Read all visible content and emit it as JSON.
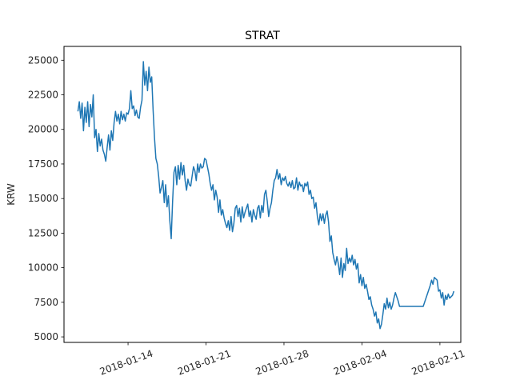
{
  "chart_data": {
    "type": "line",
    "title": "STRAT",
    "xlabel": "",
    "ylabel": "KRW",
    "y_ticks": [
      5000,
      7500,
      10000,
      12500,
      15000,
      17500,
      20000,
      22500,
      25000
    ],
    "y_tick_labels": [
      "5000",
      "7500",
      "10000",
      "12500",
      "15000",
      "17500",
      "20000",
      "22500",
      "25000"
    ],
    "x_ticks": [
      "2018-01-14",
      "2018-01-21",
      "2018-01-28",
      "2018-02-04",
      "2018-02-11"
    ],
    "x_tick_labels": [
      "2018-01-14",
      "2018-01-21",
      "2018-01-28",
      "2018-02-04",
      "2018-02-11"
    ],
    "xlim": [
      "2018-01-08T06:00",
      "2018-02-12T21:00"
    ],
    "ylim": [
      4600,
      26000
    ],
    "grid": false,
    "series": [
      {
        "color": "#1f77b4",
        "x": [
          "2018-01-09T12:00",
          "2018-01-09T15:00",
          "2018-01-09T18:00",
          "2018-01-09T21:00",
          "2018-01-10T00:00",
          "2018-01-10T03:00",
          "2018-01-10T06:00",
          "2018-01-10T09:00",
          "2018-01-10T12:00",
          "2018-01-10T15:00",
          "2018-01-10T18:00",
          "2018-01-10T21:00",
          "2018-01-11T00:00",
          "2018-01-11T03:00",
          "2018-01-11T06:00",
          "2018-01-11T09:00",
          "2018-01-11T12:00",
          "2018-01-11T15:00",
          "2018-01-11T18:00",
          "2018-01-11T21:00",
          "2018-01-12T00:00",
          "2018-01-12T03:00",
          "2018-01-12T06:00",
          "2018-01-12T09:00",
          "2018-01-12T12:00",
          "2018-01-12T15:00",
          "2018-01-12T18:00",
          "2018-01-12T21:00",
          "2018-01-13T00:00",
          "2018-01-13T03:00",
          "2018-01-13T06:00",
          "2018-01-13T09:00",
          "2018-01-13T12:00",
          "2018-01-13T15:00",
          "2018-01-13T18:00",
          "2018-01-13T21:00",
          "2018-01-14T00:00",
          "2018-01-14T03:00",
          "2018-01-14T06:00",
          "2018-01-14T09:00",
          "2018-01-14T12:00",
          "2018-01-14T15:00",
          "2018-01-14T18:00",
          "2018-01-14T21:00",
          "2018-01-15T00:00",
          "2018-01-15T03:00",
          "2018-01-15T06:00",
          "2018-01-15T09:00",
          "2018-01-15T12:00",
          "2018-01-15T15:00",
          "2018-01-15T18:00",
          "2018-01-15T21:00",
          "2018-01-16T00:00",
          "2018-01-16T03:00",
          "2018-01-16T06:00",
          "2018-01-16T09:00",
          "2018-01-16T12:00",
          "2018-01-16T15:00",
          "2018-01-16T18:00",
          "2018-01-16T21:00",
          "2018-01-17T00:00",
          "2018-01-17T03:00",
          "2018-01-17T06:00",
          "2018-01-17T09:00",
          "2018-01-17T12:00",
          "2018-01-17T15:00",
          "2018-01-17T18:00",
          "2018-01-17T21:00",
          "2018-01-18T00:00",
          "2018-01-18T03:00",
          "2018-01-18T06:00",
          "2018-01-18T09:00",
          "2018-01-18T12:00",
          "2018-01-18T15:00",
          "2018-01-18T18:00",
          "2018-01-18T21:00",
          "2018-01-19T00:00",
          "2018-01-19T03:00",
          "2018-01-19T06:00",
          "2018-01-19T09:00",
          "2018-01-19T12:00",
          "2018-01-19T15:00",
          "2018-01-19T18:00",
          "2018-01-19T21:00",
          "2018-01-20T00:00",
          "2018-01-20T03:00",
          "2018-01-20T06:00",
          "2018-01-20T09:00",
          "2018-01-20T12:00",
          "2018-01-20T15:00",
          "2018-01-20T18:00",
          "2018-01-20T21:00",
          "2018-01-21T00:00",
          "2018-01-21T03:00",
          "2018-01-21T06:00",
          "2018-01-21T09:00",
          "2018-01-21T12:00",
          "2018-01-21T15:00",
          "2018-01-21T18:00",
          "2018-01-21T21:00",
          "2018-01-22T00:00",
          "2018-01-22T03:00",
          "2018-01-22T06:00",
          "2018-01-22T09:00",
          "2018-01-22T12:00",
          "2018-01-22T15:00",
          "2018-01-22T18:00",
          "2018-01-22T21:00",
          "2018-01-23T00:00",
          "2018-01-23T03:00",
          "2018-01-23T06:00",
          "2018-01-23T09:00",
          "2018-01-23T12:00",
          "2018-01-23T15:00",
          "2018-01-23T18:00",
          "2018-01-23T21:00",
          "2018-01-24T00:00",
          "2018-01-24T03:00",
          "2018-01-24T06:00",
          "2018-01-24T09:00",
          "2018-01-24T12:00",
          "2018-01-24T15:00",
          "2018-01-24T18:00",
          "2018-01-24T21:00",
          "2018-01-25T00:00",
          "2018-01-25T03:00",
          "2018-01-25T06:00",
          "2018-01-25T09:00",
          "2018-01-25T12:00",
          "2018-01-25T15:00",
          "2018-01-25T18:00",
          "2018-01-25T21:00",
          "2018-01-26T00:00",
          "2018-01-26T03:00",
          "2018-01-26T06:00",
          "2018-01-26T09:00",
          "2018-01-26T12:00",
          "2018-01-26T15:00",
          "2018-01-26T18:00",
          "2018-01-26T21:00",
          "2018-01-27T00:00",
          "2018-01-27T03:00",
          "2018-01-27T06:00",
          "2018-01-27T09:00",
          "2018-01-27T12:00",
          "2018-01-27T15:00",
          "2018-01-27T18:00",
          "2018-01-27T21:00",
          "2018-01-28T00:00",
          "2018-01-28T03:00",
          "2018-01-28T06:00",
          "2018-01-28T09:00",
          "2018-01-28T12:00",
          "2018-01-28T15:00",
          "2018-01-28T18:00",
          "2018-01-28T21:00",
          "2018-01-29T00:00",
          "2018-01-29T03:00",
          "2018-01-29T06:00",
          "2018-01-29T09:00",
          "2018-01-29T12:00",
          "2018-01-29T15:00",
          "2018-01-29T18:00",
          "2018-01-29T21:00",
          "2018-01-30T00:00",
          "2018-01-30T03:00",
          "2018-01-30T06:00",
          "2018-01-30T09:00",
          "2018-01-30T12:00",
          "2018-01-30T15:00",
          "2018-01-30T18:00",
          "2018-01-30T21:00",
          "2018-01-31T00:00",
          "2018-01-31T03:00",
          "2018-01-31T06:00",
          "2018-01-31T09:00",
          "2018-01-31T12:00",
          "2018-01-31T15:00",
          "2018-01-31T18:00",
          "2018-01-31T21:00",
          "2018-02-01T00:00",
          "2018-02-01T03:00",
          "2018-02-01T06:00",
          "2018-02-01T09:00",
          "2018-02-01T12:00",
          "2018-02-01T15:00",
          "2018-02-01T18:00",
          "2018-02-01T21:00",
          "2018-02-02T00:00",
          "2018-02-02T03:00",
          "2018-02-02T06:00",
          "2018-02-02T09:00",
          "2018-02-02T12:00",
          "2018-02-02T15:00",
          "2018-02-02T18:00",
          "2018-02-02T21:00",
          "2018-02-03T00:00",
          "2018-02-03T03:00",
          "2018-02-03T06:00",
          "2018-02-03T09:00",
          "2018-02-03T12:00",
          "2018-02-03T15:00",
          "2018-02-03T18:00",
          "2018-02-03T21:00",
          "2018-02-04T00:00",
          "2018-02-04T03:00",
          "2018-02-04T06:00",
          "2018-02-04T09:00",
          "2018-02-04T12:00",
          "2018-02-04T15:00",
          "2018-02-04T18:00",
          "2018-02-04T21:00",
          "2018-02-05T00:00",
          "2018-02-05T03:00",
          "2018-02-05T06:00",
          "2018-02-05T09:00",
          "2018-02-05T12:00",
          "2018-02-05T15:00",
          "2018-02-05T18:00",
          "2018-02-05T21:00",
          "2018-02-06T00:00",
          "2018-02-06T03:00",
          "2018-02-06T06:00",
          "2018-02-06T09:00",
          "2018-02-06T12:00",
          "2018-02-06T15:00",
          "2018-02-06T18:00",
          "2018-02-06T21:00",
          "2018-02-07T00:00",
          "2018-02-07T03:00",
          "2018-02-07T06:00",
          "2018-02-07T09:00",
          "2018-02-07T12:00",
          "2018-02-07T15:00",
          "2018-02-07T18:00",
          "2018-02-07T21:00",
          "2018-02-08T00:00",
          "2018-02-08T12:00",
          "2018-02-09T00:00",
          "2018-02-09T12:00",
          "2018-02-10T00:00",
          "2018-02-10T03:00",
          "2018-02-10T06:00",
          "2018-02-10T09:00",
          "2018-02-10T12:00",
          "2018-02-10T15:00",
          "2018-02-10T18:00",
          "2018-02-10T21:00",
          "2018-02-11T00:00",
          "2018-02-11T03:00",
          "2018-02-11T06:00",
          "2018-02-11T09:00",
          "2018-02-11T12:00",
          "2018-02-11T15:00",
          "2018-02-11T18:00",
          "2018-02-11T21:00",
          "2018-02-12T00:00",
          "2018-02-12T03:00",
          "2018-02-12T06:00"
        ],
        "y": [
          21300,
          22000,
          20800,
          21900,
          19900,
          21600,
          20500,
          22000,
          20200,
          21800,
          20900,
          22500,
          19400,
          20000,
          18400,
          19700,
          18800,
          19300,
          18500,
          18200,
          17700,
          18700,
          19600,
          18500,
          19900,
          19200,
          20500,
          21300,
          20600,
          21100,
          20400,
          21300,
          20700,
          21100,
          20600,
          21200,
          21100,
          21500,
          22800,
          21500,
          21700,
          21000,
          21400,
          20900,
          20800,
          21600,
          22100,
          24900,
          23200,
          24200,
          22800,
          24500,
          23400,
          23800,
          21400,
          19400,
          17900,
          17500,
          16600,
          15400,
          15800,
          16300,
          14700,
          16000,
          14400,
          15200,
          13400,
          12100,
          14800,
          16900,
          17300,
          16000,
          17400,
          16400,
          17600,
          16700,
          17400,
          16300,
          15600,
          16400,
          16000,
          15900,
          16600,
          17300,
          17000,
          16300,
          17500,
          16900,
          17500,
          17200,
          17300,
          17900,
          17800,
          17300,
          16800,
          16100,
          15600,
          16000,
          14900,
          15600,
          15100,
          14000,
          14900,
          13800,
          14200,
          13600,
          13200,
          12900,
          13400,
          12700,
          13700,
          12600,
          13200,
          14300,
          14500,
          13700,
          14300,
          13300,
          14400,
          13600,
          14000,
          14300,
          14600,
          13700,
          14100,
          13300,
          14200,
          13800,
          13500,
          14300,
          14500,
          13600,
          14500,
          14000,
          15300,
          15600,
          14800,
          13700,
          14300,
          14700,
          15600,
          16300,
          16500,
          17100,
          16400,
          16800,
          16000,
          16500,
          16300,
          16600,
          16100,
          15900,
          16200,
          15800,
          16300,
          15700,
          15800,
          16500,
          15600,
          16200,
          15900,
          16000,
          15500,
          16100,
          15900,
          16200,
          15300,
          15600,
          15000,
          15100,
          14300,
          14700,
          13700,
          13100,
          13900,
          13400,
          13900,
          13200,
          13800,
          14100,
          13300,
          11900,
          12300,
          11100,
          10600,
          10200,
          10800,
          10300,
          9500,
          10700,
          9300,
          10300,
          9800,
          11400,
          10300,
          10700,
          10400,
          10900,
          10200,
          10600,
          9900,
          10300,
          8900,
          9500,
          8700,
          9300,
          8500,
          8800,
          8300,
          7700,
          7900,
          7300,
          7000,
          6500,
          6800,
          6000,
          6300,
          5600,
          5900,
          6600,
          7400,
          7000,
          7800,
          7100,
          7500,
          7000,
          7300,
          7800,
          8200,
          7900,
          7600,
          7200,
          7200,
          7200,
          7200,
          7200,
          7200,
          7200,
          7200,
          7200,
          8400,
          8700,
          9100,
          8800,
          9300,
          9200,
          9100,
          8300,
          8400,
          7800,
          8200,
          7300,
          8000,
          7700,
          8100,
          7800,
          7900,
          8000,
          8300
        ]
      }
    ]
  }
}
